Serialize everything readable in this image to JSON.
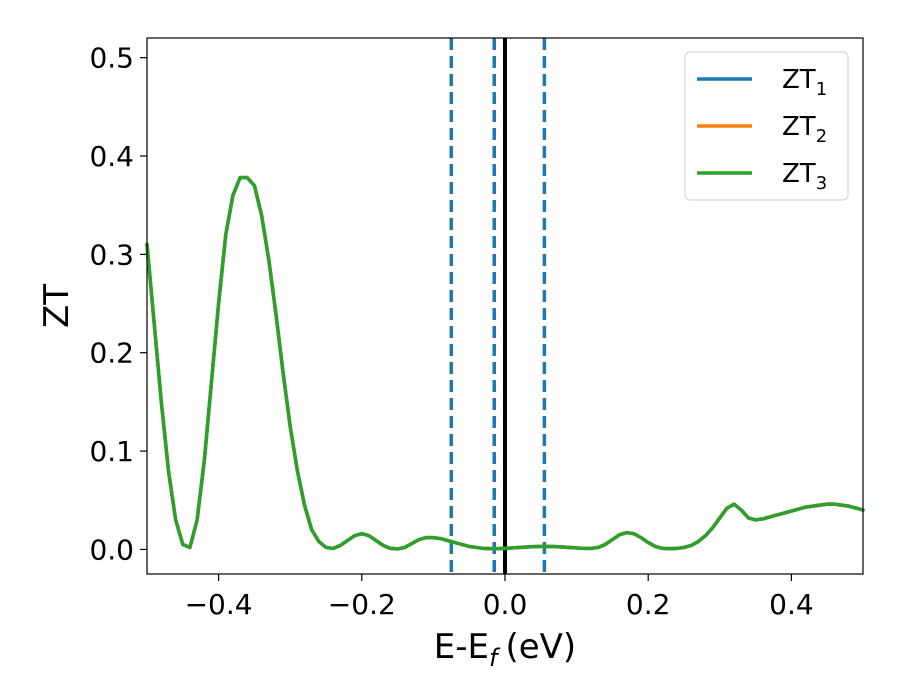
{
  "chart_data": {
    "type": "line",
    "xlabel": "E-E",
    "xlabel_sub": "f",
    "xlabel_unit": "(eV)",
    "ylabel": "ZT",
    "xlim": [
      -0.5,
      0.5
    ],
    "ylim": [
      -0.025,
      0.52
    ],
    "xticks": [
      -0.4,
      -0.2,
      0.0,
      0.2,
      0.4
    ],
    "xtick_labels": [
      "−0.4",
      "−0.2",
      "0.0",
      "0.2",
      "0.4"
    ],
    "yticks": [
      0.0,
      0.1,
      0.2,
      0.3,
      0.4,
      0.5
    ],
    "ytick_labels": [
      "0.0",
      "0.1",
      "0.2",
      "0.3",
      "0.4",
      "0.5"
    ],
    "grid": false,
    "legend_position": "top-right",
    "series": [
      {
        "name": "ZT",
        "sub": "1",
        "color": "#1f77b4"
      },
      {
        "name": "ZT",
        "sub": "2",
        "color": "#ff7f0e"
      },
      {
        "name": "ZT",
        "sub": "3",
        "color": "#2ca02c"
      }
    ],
    "curve": {
      "x": [
        -0.5,
        -0.49,
        -0.48,
        -0.47,
        -0.46,
        -0.45,
        -0.44,
        -0.43,
        -0.42,
        -0.41,
        -0.4,
        -0.39,
        -0.38,
        -0.37,
        -0.36,
        -0.35,
        -0.34,
        -0.33,
        -0.32,
        -0.31,
        -0.3,
        -0.29,
        -0.28,
        -0.27,
        -0.26,
        -0.25,
        -0.24,
        -0.23,
        -0.22,
        -0.21,
        -0.2,
        -0.19,
        -0.18,
        -0.17,
        -0.16,
        -0.15,
        -0.14,
        -0.13,
        -0.12,
        -0.11,
        -0.1,
        -0.09,
        -0.08,
        -0.07,
        -0.06,
        -0.05,
        -0.04,
        -0.03,
        -0.02,
        -0.01,
        0.0,
        0.01,
        0.02,
        0.03,
        0.04,
        0.05,
        0.06,
        0.07,
        0.08,
        0.09,
        0.1,
        0.11,
        0.12,
        0.13,
        0.14,
        0.15,
        0.16,
        0.17,
        0.18,
        0.19,
        0.2,
        0.21,
        0.22,
        0.23,
        0.24,
        0.25,
        0.26,
        0.27,
        0.28,
        0.29,
        0.3,
        0.31,
        0.32,
        0.33,
        0.34,
        0.35,
        0.36,
        0.37,
        0.38,
        0.39,
        0.4,
        0.41,
        0.42,
        0.43,
        0.44,
        0.45,
        0.46,
        0.47,
        0.48,
        0.49,
        0.5
      ],
      "y": [
        0.31,
        0.23,
        0.15,
        0.08,
        0.03,
        0.005,
        0.002,
        0.03,
        0.09,
        0.17,
        0.25,
        0.32,
        0.36,
        0.378,
        0.378,
        0.37,
        0.34,
        0.295,
        0.24,
        0.18,
        0.125,
        0.08,
        0.045,
        0.02,
        0.008,
        0.002,
        0.001,
        0.004,
        0.009,
        0.014,
        0.016,
        0.014,
        0.009,
        0.004,
        0.001,
        0.0005,
        0.002,
        0.006,
        0.01,
        0.012,
        0.012,
        0.011,
        0.009,
        0.007,
        0.005,
        0.003,
        0.002,
        0.001,
        0.0008,
        0.0008,
        0.001,
        0.0015,
        0.002,
        0.0025,
        0.0028,
        0.003,
        0.003,
        0.0028,
        0.0024,
        0.002,
        0.0015,
        0.001,
        0.001,
        0.002,
        0.005,
        0.01,
        0.015,
        0.017,
        0.016,
        0.012,
        0.007,
        0.003,
        0.001,
        0.0008,
        0.001,
        0.002,
        0.004,
        0.008,
        0.014,
        0.022,
        0.032,
        0.042,
        0.046,
        0.04,
        0.032,
        0.03,
        0.031,
        0.033,
        0.035,
        0.037,
        0.039,
        0.041,
        0.043,
        0.044,
        0.045,
        0.046,
        0.046,
        0.045,
        0.044,
        0.042,
        0.04
      ]
    },
    "vlines": [
      {
        "x": -0.075,
        "style": "dashed",
        "color": "#1f77b4"
      },
      {
        "x": -0.015,
        "style": "dashed",
        "color": "#1f77b4"
      },
      {
        "x": 0.0,
        "style": "solid",
        "color": "#000000"
      },
      {
        "x": 0.055,
        "style": "dashed",
        "color": "#1f77b4"
      }
    ]
  }
}
